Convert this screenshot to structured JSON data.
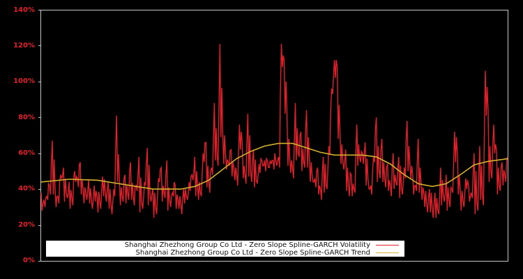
{
  "chart_data": {
    "type": "line",
    "title": "",
    "xlabel": "",
    "ylabel": "",
    "ylim": [
      0,
      140
    ],
    "y_tick_labels": [
      "0%",
      "20%",
      "40%",
      "60%",
      "80%",
      "100%",
      "120%",
      "140%"
    ],
    "y_ticks": [
      0,
      20,
      40,
      60,
      80,
      100,
      120,
      140
    ],
    "x_tick_labels": [],
    "grid": false,
    "background": "#000000",
    "frame_color": "#c8c8c8",
    "legend_position": "lower-left inside",
    "legend": [
      "Shanghai Zhezhong Group Co Ltd - Zero Slope Spline-GARCH Volatility",
      "Shanghai Zhezhong Group Co Ltd - Zero Slope Spline-GARCH Trend"
    ],
    "series": [
      {
        "name": "Shanghai Zhezhong Group Co Ltd - Zero Slope Spline-GARCH Volatility",
        "color": "#e0202a",
        "x": [
          0,
          1,
          2,
          3,
          4,
          5,
          6,
          7,
          8,
          9,
          10,
          11,
          12,
          13,
          14,
          15,
          16,
          17,
          18,
          19,
          20,
          21,
          22,
          23,
          24,
          25,
          26,
          27,
          28,
          29,
          30,
          31,
          32,
          33,
          34,
          35,
          36,
          37,
          38,
          39,
          40,
          41,
          42,
          43,
          44,
          45,
          46,
          47,
          48,
          49,
          50,
          51,
          52,
          53,
          54,
          55,
          56,
          57,
          58,
          59,
          60,
          61,
          62,
          63,
          64,
          65,
          66,
          67,
          68,
          69,
          70,
          71,
          72,
          73,
          74,
          75,
          76,
          77,
          78,
          79,
          80,
          81,
          82,
          83,
          84,
          85,
          86,
          87,
          88,
          89,
          90,
          91,
          92,
          93,
          94,
          95,
          96,
          97,
          98,
          99,
          100,
          101,
          102,
          103,
          104,
          105,
          106,
          107,
          108,
          109,
          110,
          111,
          112,
          113,
          114,
          115,
          116,
          117,
          118,
          119,
          120,
          121,
          122,
          123,
          124,
          125,
          126,
          127,
          128,
          129,
          130,
          131,
          132,
          133,
          134,
          135,
          136,
          137,
          138,
          139,
          140,
          141,
          142,
          143,
          144,
          145,
          146,
          147,
          148,
          149,
          150,
          151,
          152,
          153,
          154,
          155,
          156,
          157,
          158,
          159,
          160,
          161,
          162,
          163,
          164,
          165,
          166,
          167
        ],
        "values": [
          38,
          34,
          36,
          42,
          67,
          40,
          36,
          48,
          52,
          38,
          44,
          35,
          50,
          46,
          55,
          40,
          38,
          45,
          34,
          42,
          36,
          33,
          47,
          38,
          44,
          32,
          40,
          81,
          46,
          36,
          48,
          38,
          55,
          36,
          42,
          58,
          33,
          44,
          63,
          36,
          40,
          30,
          46,
          52,
          38,
          56,
          34,
          38,
          42,
          34,
          32,
          40,
          36,
          44,
          48,
          58,
          42,
          38,
          60,
          66,
          44,
          52,
          88,
          58,
          121,
          72,
          60,
          55,
          62,
          52,
          48,
          76,
          66,
          48,
          82,
          50,
          62,
          45,
          54,
          56,
          56,
          56,
          56,
          56,
          56,
          58,
          121,
          112,
          84,
          58,
          52,
          88,
          60,
          72,
          55,
          84,
          58,
          48,
          46,
          52,
          40,
          58,
          42,
          64,
          96,
          112,
          108,
          72,
          56,
          62,
          42,
          48,
          40,
          76,
          58,
          60,
          66,
          46,
          42,
          58,
          80,
          50,
          68,
          46,
          54,
          42,
          60,
          44,
          58,
          40,
          52,
          78,
          54,
          48,
          42,
          68,
          44,
          38,
          32,
          40,
          30,
          38,
          28,
          52,
          36,
          48,
          34,
          40,
          72,
          60,
          40,
          34,
          46,
          42,
          38,
          60,
          32,
          64,
          36,
          106,
          84,
          50,
          76,
          62,
          42,
          55,
          48,
          58
        ]
      },
      {
        "name": "Shanghai Zhezhong Group Co Ltd - Zero Slope Spline-GARCH Trend",
        "color": "#d4b030",
        "x": [
          0,
          10,
          20,
          30,
          40,
          50,
          55,
          60,
          65,
          70,
          75,
          80,
          85,
          90,
          95,
          100,
          105,
          110,
          115,
          120,
          125,
          130,
          135,
          140,
          145,
          150,
          155,
          160,
          165,
          167
        ],
        "values": [
          44,
          45.5,
          45,
          42.5,
          40,
          40,
          41.5,
          45,
          51,
          57,
          61,
          64,
          65.5,
          65.5,
          63,
          60.5,
          59,
          59,
          59,
          58,
          54,
          48,
          43,
          41.5,
          43,
          48,
          53.5,
          55.5,
          56.5,
          57
        ]
      }
    ]
  },
  "axes": {
    "y_labels": [
      "140%",
      "120%",
      "100%",
      "80%",
      "60%",
      "40%",
      "20%",
      "0%"
    ]
  },
  "legend": {
    "volatility_label": "Shanghai Zhezhong Group Co Ltd - Zero Slope Spline-GARCH Volatility",
    "trend_label": "Shanghai Zhezhong Group Co Ltd - Zero Slope Spline-GARCH Trend",
    "volatility_color": "#e0202a",
    "trend_color": "#d4b030"
  }
}
